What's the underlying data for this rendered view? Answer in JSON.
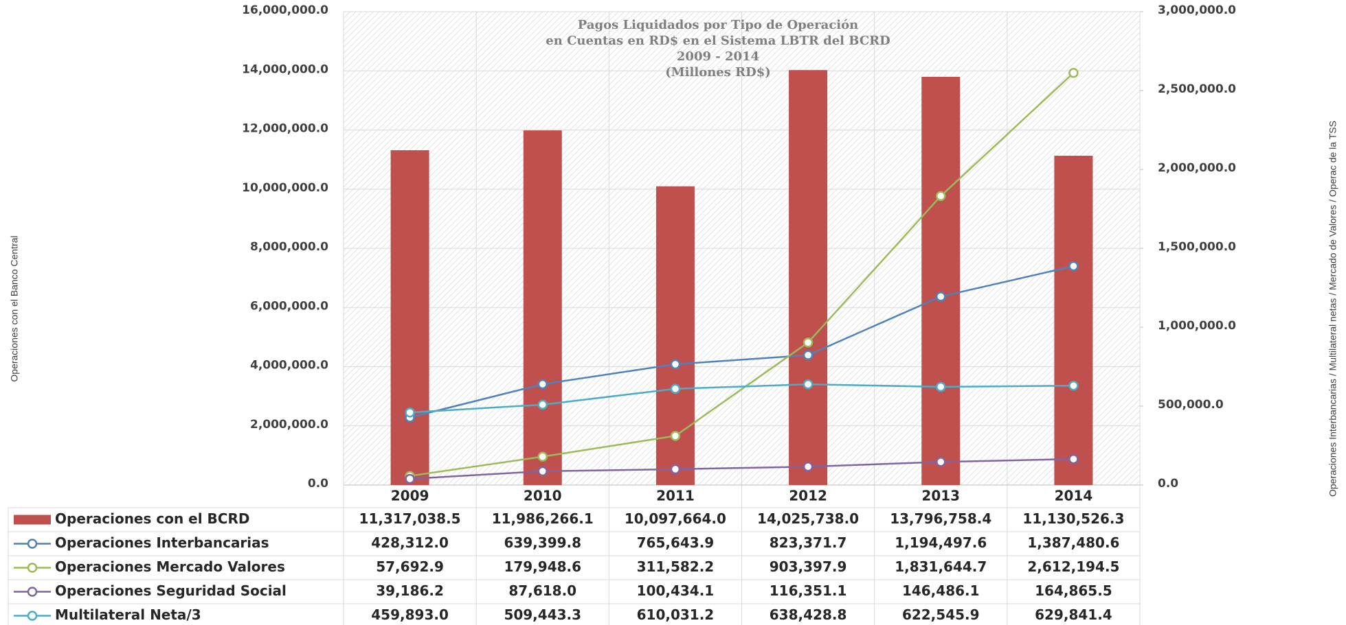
{
  "chart_data": {
    "type": "bar",
    "title": [
      "Pagos Liquidados por Tipo de Operación",
      "en Cuentas en RD$ en el Sistema LBTR del BCRD",
      "2009 - 2014",
      "(Millones RD$)"
    ],
    "ylabel": "Operaciones con el Banco Central",
    "y2label": "Operaciones Interbancarias / Multilateral netas / Mercado de Valores / Operac de la TSS",
    "categories": [
      "2009",
      "2010",
      "2011",
      "2012",
      "2013",
      "2014"
    ],
    "series": [
      {
        "name": "Operaciones con el BCRD",
        "color": "#c0504d",
        "type": "bar",
        "axis": "y",
        "values": [
          11317038.5,
          11986266.1,
          10097664.0,
          14025738.0,
          13796758.4,
          11130526.3
        ],
        "value_labels": [
          "11,317,038.5",
          "11,986,266.1",
          "10,097,664.0",
          "14,025,738.0",
          "13,796,758.4",
          "11,130,526.3"
        ]
      },
      {
        "name": "Operaciones Interbancarias",
        "color": "#4f81bd",
        "type": "line",
        "axis": "y2",
        "values": [
          428312.0,
          639399.8,
          765643.9,
          823371.7,
          1194497.6,
          1387480.6
        ],
        "value_labels": [
          "428,312.0",
          "639,399.8",
          "765,643.9",
          "823,371.7",
          "1,194,497.6",
          "1,387,480.6"
        ]
      },
      {
        "name": "Operaciones Mercado Valores",
        "color": "#9bbb59",
        "type": "line",
        "axis": "y2",
        "values": [
          57692.9,
          179948.6,
          311582.2,
          903397.9,
          1831644.7,
          2612194.5
        ],
        "value_labels": [
          "57,692.9",
          "179,948.6",
          "311,582.2",
          "903,397.9",
          "1,831,644.7",
          "2,612,194.5"
        ]
      },
      {
        "name": "Operaciones Seguridad Social",
        "color": "#8064a2",
        "type": "line",
        "axis": "y2",
        "values": [
          39186.2,
          87618.0,
          100434.1,
          116351.1,
          146486.1,
          164865.5
        ],
        "value_labels": [
          "39,186.2",
          "87,618.0",
          "100,434.1",
          "116,351.1",
          "146,486.1",
          "164,865.5"
        ]
      },
      {
        "name": "Multilateral Neta/3",
        "color": "#4bacc6",
        "type": "line",
        "axis": "y2",
        "values": [
          459893.0,
          509443.3,
          610031.2,
          638428.8,
          622545.9,
          629841.4
        ],
        "value_labels": [
          "459,893.0",
          "509,443.3",
          "610,031.2",
          "638,428.8",
          "622,545.9",
          "629,841.4"
        ]
      }
    ],
    "ylim": [
      0,
      16000000
    ],
    "yticks": [
      {
        "value": 0,
        "label": "0.0"
      },
      {
        "value": 2000000,
        "label": "2,000,000.0"
      },
      {
        "value": 4000000,
        "label": "4,000,000.0"
      },
      {
        "value": 6000000,
        "label": "6,000,000.0"
      },
      {
        "value": 8000000,
        "label": "8,000,000.0"
      },
      {
        "value": 10000000,
        "label": "10,000,000.0"
      },
      {
        "value": 12000000,
        "label": "12,000,000.0"
      },
      {
        "value": 14000000,
        "label": "14,000,000.0"
      },
      {
        "value": 16000000,
        "label": "16,000,000.0"
      }
    ],
    "y2lim": [
      0,
      3000000
    ],
    "y2ticks": [
      {
        "value": 0,
        "label": "0.0"
      },
      {
        "value": 500000,
        "label": "500,000.0"
      },
      {
        "value": 1000000,
        "label": "1,000,000.0"
      },
      {
        "value": 1500000,
        "label": "1,500,000.0"
      },
      {
        "value": 2000000,
        "label": "2,000,000.0"
      },
      {
        "value": 2500000,
        "label": "2,500,000.0"
      },
      {
        "value": 3000000,
        "label": "3,000,000.0"
      }
    ],
    "grid": true
  }
}
